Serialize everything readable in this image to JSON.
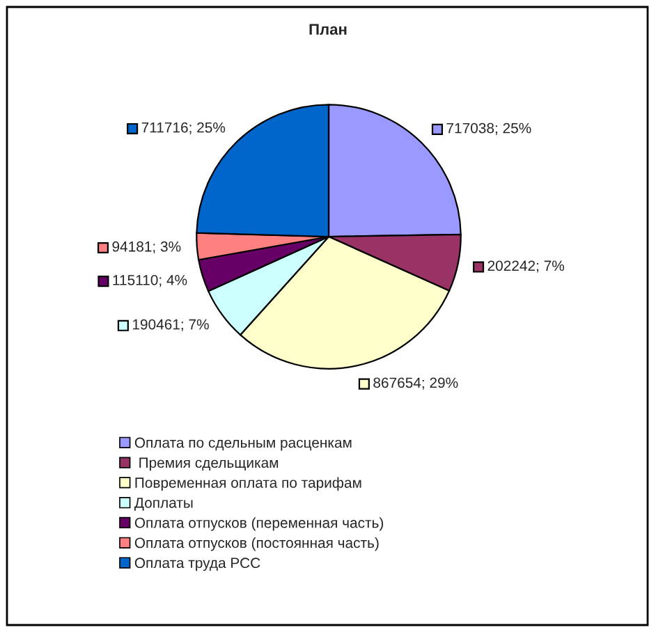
{
  "chart_data": {
    "type": "pie",
    "title": "План",
    "categories": [
      "Оплата по сдельным расценкам",
      " Премия сдельщикам",
      "Повременная оплата по тарифам",
      "Доплаты",
      "Оплата отпусков (переменная часть)",
      "Оплата отпусков (постоянная часть)",
      "Оплата труда РСС"
    ],
    "values": [
      717038,
      202242,
      867654,
      190461,
      115110,
      94181,
      711716
    ],
    "colors": [
      "#9999ff",
      "#993366",
      "#ffffcc",
      "#ccffff",
      "#660066",
      "#ff8080",
      "#0066cc"
    ],
    "value_labels": [
      "717038; 25%",
      "202242; 7%",
      "867654; 29%",
      "190461; 7%",
      "115110; 4%",
      "94181; 3%",
      "711716; 25%"
    ],
    "legend": "bottom"
  }
}
